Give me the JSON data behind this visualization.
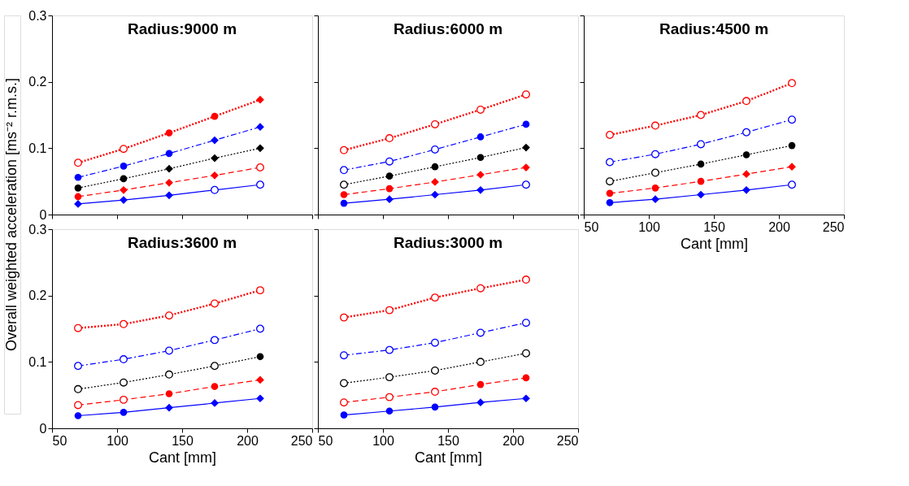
{
  "chart_data": [
    {
      "type": "line",
      "title": "Radius:9000 m",
      "ylabel": "Overall weighted acceleration [ms⁻² r.m.s.]",
      "x": [
        70,
        105,
        140,
        175,
        210
      ],
      "xlim": [
        50,
        250
      ],
      "ylim": [
        0,
        0.3
      ],
      "xticks": [
        50,
        100,
        150,
        200,
        250
      ],
      "yticks": [
        0,
        0.1,
        0.2,
        0.3
      ],
      "tick_labels": "y",
      "grid": false,
      "series": [
        {
          "color": "#ff0000",
          "line_style": "dotted",
          "marker": "none",
          "values": [
            0.078,
            0.099,
            0.123,
            0.148,
            0.173
          ]
        },
        {
          "color": "#0000ff",
          "line_style": "dashdot",
          "marker": "none",
          "values": [
            0.056,
            0.073,
            0.092,
            0.112,
            0.132
          ]
        },
        {
          "color": "#000000",
          "line_style": "dotted",
          "marker": "none",
          "values": [
            0.04,
            0.054,
            0.069,
            0.085,
            0.1
          ]
        },
        {
          "color": "#ff0000",
          "line_style": "dashed",
          "marker": "none",
          "values": [
            0.027,
            0.037,
            0.048,
            0.059,
            0.071
          ]
        },
        {
          "color": "#0000ff",
          "line_style": "solid",
          "marker": "none",
          "values": [
            0.016,
            0.022,
            0.029,
            0.037,
            0.045
          ]
        },
        {
          "type": "scatter",
          "color": "#ff0000",
          "marker": "circle_open",
          "x": [
            70,
            105
          ],
          "values": [
            0.078,
            0.099
          ]
        },
        {
          "type": "scatter",
          "color": "#ff0000",
          "marker": "circle",
          "x": [
            140,
            175
          ],
          "values": [
            0.123,
            0.148
          ]
        },
        {
          "type": "scatter",
          "color": "#ff0000",
          "marker": "diamond",
          "x": [
            210
          ],
          "values": [
            0.173
          ]
        },
        {
          "type": "scatter",
          "color": "#0000ff",
          "marker": "circle",
          "x": [
            70,
            105,
            140
          ],
          "values": [
            0.056,
            0.073,
            0.092
          ]
        },
        {
          "type": "scatter",
          "color": "#0000ff",
          "marker": "diamond",
          "x": [
            175,
            210
          ],
          "values": [
            0.112,
            0.132
          ]
        },
        {
          "type": "scatter",
          "color": "#000000",
          "marker": "circle",
          "x": [
            70,
            105
          ],
          "values": [
            0.04,
            0.054
          ]
        },
        {
          "type": "scatter",
          "color": "#000000",
          "marker": "diamond",
          "x": [
            140,
            175,
            210
          ],
          "values": [
            0.069,
            0.085,
            0.1
          ]
        },
        {
          "type": "scatter",
          "color": "#ff0000",
          "marker": "circle",
          "x": [
            70
          ],
          "values": [
            0.027
          ]
        },
        {
          "type": "scatter",
          "color": "#ff0000",
          "marker": "diamond",
          "x": [
            105,
            140,
            175
          ],
          "values": [
            0.037,
            0.048,
            0.059
          ]
        },
        {
          "type": "scatter",
          "color": "#ff0000",
          "marker": "circle_open",
          "x": [
            210
          ],
          "values": [
            0.071
          ]
        },
        {
          "type": "scatter",
          "color": "#0000ff",
          "marker": "diamond",
          "x": [
            70,
            105,
            140
          ],
          "values": [
            0.016,
            0.022,
            0.029
          ]
        },
        {
          "type": "scatter",
          "color": "#0000ff",
          "marker": "circle_open",
          "x": [
            175,
            210
          ],
          "values": [
            0.037,
            0.045
          ]
        }
      ]
    },
    {
      "type": "line",
      "title": "Radius:6000 m",
      "x": [
        70,
        105,
        140,
        175,
        210
      ],
      "xlim": [
        50,
        250
      ],
      "ylim": [
        0,
        0.3
      ],
      "xticks": [
        50,
        100,
        150,
        200,
        250
      ],
      "yticks": [
        0,
        0.1,
        0.2,
        0.3
      ],
      "tick_labels": false,
      "grid": false,
      "series": [
        {
          "color": "#ff0000",
          "line_style": "dotted",
          "marker": "none",
          "values": [
            0.097,
            0.115,
            0.136,
            0.158,
            0.181
          ]
        },
        {
          "color": "#0000ff",
          "line_style": "dashdot",
          "marker": "none",
          "values": [
            0.067,
            0.08,
            0.098,
            0.117,
            0.136
          ]
        },
        {
          "color": "#000000",
          "line_style": "dotted",
          "marker": "none",
          "values": [
            0.045,
            0.058,
            0.072,
            0.086,
            0.101
          ]
        },
        {
          "color": "#ff0000",
          "line_style": "dashed",
          "marker": "none",
          "values": [
            0.03,
            0.039,
            0.049,
            0.06,
            0.071
          ]
        },
        {
          "color": "#0000ff",
          "line_style": "solid",
          "marker": "none",
          "values": [
            0.017,
            0.023,
            0.03,
            0.037,
            0.045
          ]
        },
        {
          "type": "scatter",
          "color": "#ff0000",
          "marker": "circle_open",
          "x": [
            70,
            105,
            140,
            175,
            210
          ],
          "values": [
            0.097,
            0.115,
            0.136,
            0.158,
            0.181
          ]
        },
        {
          "type": "scatter",
          "color": "#0000ff",
          "marker": "circle_open",
          "x": [
            70,
            105,
            140
          ],
          "values": [
            0.067,
            0.08,
            0.098
          ]
        },
        {
          "type": "scatter",
          "color": "#0000ff",
          "marker": "circle",
          "x": [
            175,
            210
          ],
          "values": [
            0.117,
            0.136
          ]
        },
        {
          "type": "scatter",
          "color": "#000000",
          "marker": "circle_open",
          "x": [
            70
          ],
          "values": [
            0.045
          ]
        },
        {
          "type": "scatter",
          "color": "#000000",
          "marker": "circle",
          "x": [
            105,
            140,
            175
          ],
          "values": [
            0.058,
            0.072,
            0.086
          ]
        },
        {
          "type": "scatter",
          "color": "#000000",
          "marker": "diamond",
          "x": [
            210
          ],
          "values": [
            0.101
          ]
        },
        {
          "type": "scatter",
          "color": "#ff0000",
          "marker": "circle",
          "x": [
            70,
            105
          ],
          "values": [
            0.03,
            0.039
          ]
        },
        {
          "type": "scatter",
          "color": "#ff0000",
          "marker": "diamond",
          "x": [
            140,
            175,
            210
          ],
          "values": [
            0.049,
            0.06,
            0.071
          ]
        },
        {
          "type": "scatter",
          "color": "#0000ff",
          "marker": "circle",
          "x": [
            70
          ],
          "values": [
            0.017
          ]
        },
        {
          "type": "scatter",
          "color": "#0000ff",
          "marker": "diamond",
          "x": [
            105,
            140,
            175
          ],
          "values": [
            0.023,
            0.03,
            0.037
          ]
        },
        {
          "type": "scatter",
          "color": "#0000ff",
          "marker": "circle_open",
          "x": [
            210
          ],
          "values": [
            0.045
          ]
        }
      ]
    },
    {
      "type": "line",
      "title": "Radius:4500 m",
      "xlabel": "Cant [mm]",
      "x": [
        70,
        105,
        140,
        175,
        210
      ],
      "xlim": [
        50,
        250
      ],
      "ylim": [
        0,
        0.3
      ],
      "xticks": [
        50,
        100,
        150,
        200,
        250
      ],
      "yticks": [
        0,
        0.1,
        0.2,
        0.3
      ],
      "tick_labels": "x",
      "grid": false,
      "series": [
        {
          "color": "#ff0000",
          "line_style": "dotted",
          "marker": "none",
          "values": [
            0.12,
            0.134,
            0.15,
            0.171,
            0.198
          ]
        },
        {
          "color": "#0000ff",
          "line_style": "dashdot",
          "marker": "none",
          "values": [
            0.079,
            0.091,
            0.106,
            0.124,
            0.143
          ]
        },
        {
          "color": "#000000",
          "line_style": "dotted",
          "marker": "none",
          "values": [
            0.05,
            0.063,
            0.076,
            0.09,
            0.104
          ]
        },
        {
          "color": "#ff0000",
          "line_style": "dashed",
          "marker": "none",
          "values": [
            0.032,
            0.04,
            0.05,
            0.061,
            0.072
          ]
        },
        {
          "color": "#0000ff",
          "line_style": "solid",
          "marker": "none",
          "values": [
            0.018,
            0.023,
            0.03,
            0.037,
            0.045
          ]
        },
        {
          "type": "scatter",
          "color": "#ff0000",
          "marker": "circle_open",
          "x": [
            70,
            105,
            140,
            175,
            210
          ],
          "values": [
            0.12,
            0.134,
            0.15,
            0.171,
            0.198
          ]
        },
        {
          "type": "scatter",
          "color": "#0000ff",
          "marker": "circle_open",
          "x": [
            70,
            105,
            140,
            175,
            210
          ],
          "values": [
            0.079,
            0.091,
            0.106,
            0.124,
            0.143
          ]
        },
        {
          "type": "scatter",
          "color": "#000000",
          "marker": "circle_open",
          "x": [
            70,
            105
          ],
          "values": [
            0.05,
            0.063
          ]
        },
        {
          "type": "scatter",
          "color": "#000000",
          "marker": "circle",
          "x": [
            140,
            175,
            210
          ],
          "values": [
            0.076,
            0.09,
            0.104
          ]
        },
        {
          "type": "scatter",
          "color": "#ff0000",
          "marker": "circle",
          "x": [
            70,
            105,
            140
          ],
          "values": [
            0.032,
            0.04,
            0.05
          ]
        },
        {
          "type": "scatter",
          "color": "#ff0000",
          "marker": "diamond",
          "x": [
            175,
            210
          ],
          "values": [
            0.061,
            0.072
          ]
        },
        {
          "type": "scatter",
          "color": "#0000ff",
          "marker": "circle",
          "x": [
            70
          ],
          "values": [
            0.018
          ]
        },
        {
          "type": "scatter",
          "color": "#0000ff",
          "marker": "diamond",
          "x": [
            105,
            140,
            175
          ],
          "values": [
            0.023,
            0.03,
            0.037
          ]
        },
        {
          "type": "scatter",
          "color": "#0000ff",
          "marker": "circle_open",
          "x": [
            210
          ],
          "values": [
            0.045
          ]
        }
      ]
    },
    {
      "type": "line",
      "title": "Radius:3600 m",
      "xlabel": "Cant [mm]",
      "x": [
        70,
        105,
        140,
        175,
        210
      ],
      "xlim": [
        50,
        250
      ],
      "ylim": [
        0,
        0.3
      ],
      "xticks": [
        50,
        100,
        150,
        200,
        250
      ],
      "yticks": [
        0,
        0.1,
        0.2,
        0.3
      ],
      "grid": false,
      "series": [
        {
          "color": "#ff0000",
          "line_style": "dotted",
          "marker": "none",
          "values": [
            0.151,
            0.157,
            0.17,
            0.188,
            0.208
          ]
        },
        {
          "color": "#0000ff",
          "line_style": "dashdot",
          "marker": "none",
          "values": [
            0.094,
            0.104,
            0.117,
            0.133,
            0.15
          ]
        },
        {
          "color": "#000000",
          "line_style": "dotted",
          "marker": "none",
          "values": [
            0.059,
            0.069,
            0.081,
            0.094,
            0.108
          ]
        },
        {
          "color": "#ff0000",
          "line_style": "dashed",
          "marker": "none",
          "values": [
            0.035,
            0.043,
            0.052,
            0.063,
            0.073
          ]
        },
        {
          "color": "#0000ff",
          "line_style": "solid",
          "marker": "none",
          "values": [
            0.019,
            0.024,
            0.031,
            0.038,
            0.045
          ]
        },
        {
          "type": "scatter",
          "color": "#ff0000",
          "marker": "circle_open",
          "x": [
            70,
            105,
            140,
            175,
            210
          ],
          "values": [
            0.151,
            0.157,
            0.17,
            0.188,
            0.208
          ]
        },
        {
          "type": "scatter",
          "color": "#0000ff",
          "marker": "circle_open",
          "x": [
            70,
            105,
            140,
            175,
            210
          ],
          "values": [
            0.094,
            0.104,
            0.117,
            0.133,
            0.15
          ]
        },
        {
          "type": "scatter",
          "color": "#000000",
          "marker": "circle_open",
          "x": [
            70,
            105,
            140,
            175
          ],
          "values": [
            0.059,
            0.069,
            0.081,
            0.094
          ]
        },
        {
          "type": "scatter",
          "color": "#000000",
          "marker": "circle",
          "x": [
            210
          ],
          "values": [
            0.108
          ]
        },
        {
          "type": "scatter",
          "color": "#ff0000",
          "marker": "circle_open",
          "x": [
            70,
            105
          ],
          "values": [
            0.035,
            0.043
          ]
        },
        {
          "type": "scatter",
          "color": "#ff0000",
          "marker": "circle",
          "x": [
            140,
            175
          ],
          "values": [
            0.052,
            0.063
          ]
        },
        {
          "type": "scatter",
          "color": "#ff0000",
          "marker": "diamond",
          "x": [
            210
          ],
          "values": [
            0.073
          ]
        },
        {
          "type": "scatter",
          "color": "#0000ff",
          "marker": "circle",
          "x": [
            70,
            105
          ],
          "values": [
            0.019,
            0.024
          ]
        },
        {
          "type": "scatter",
          "color": "#0000ff",
          "marker": "diamond",
          "x": [
            140,
            175,
            210
          ],
          "values": [
            0.031,
            0.038,
            0.045
          ]
        }
      ]
    },
    {
      "type": "line",
      "title": "Radius:3000 m",
      "xlabel": "Cant [mm]",
      "x": [
        70,
        105,
        140,
        175,
        210
      ],
      "xlim": [
        50,
        250
      ],
      "ylim": [
        0,
        0.3
      ],
      "xticks": [
        50,
        100,
        150,
        200,
        250
      ],
      "yticks": [
        0,
        0.1,
        0.2,
        0.3
      ],
      "tick_labels": "x",
      "grid": false,
      "series": [
        {
          "color": "#ff0000",
          "line_style": "dotted",
          "marker": "none",
          "values": [
            0.167,
            0.178,
            0.197,
            0.211,
            0.224
          ]
        },
        {
          "color": "#0000ff",
          "line_style": "dashdot",
          "marker": "none",
          "values": [
            0.11,
            0.118,
            0.129,
            0.144,
            0.159
          ]
        },
        {
          "color": "#000000",
          "line_style": "dotted",
          "marker": "none",
          "values": [
            0.068,
            0.077,
            0.087,
            0.1,
            0.113
          ]
        },
        {
          "color": "#ff0000",
          "line_style": "dashed",
          "marker": "none",
          "values": [
            0.039,
            0.047,
            0.055,
            0.066,
            0.076
          ]
        },
        {
          "color": "#0000ff",
          "line_style": "solid",
          "marker": "none",
          "values": [
            0.02,
            0.026,
            0.032,
            0.039,
            0.045
          ]
        },
        {
          "type": "scatter",
          "color": "#ff0000",
          "marker": "circle_open",
          "x": [
            70,
            105,
            140,
            175,
            210
          ],
          "values": [
            0.167,
            0.178,
            0.197,
            0.211,
            0.224
          ]
        },
        {
          "type": "scatter",
          "color": "#0000ff",
          "marker": "circle_open",
          "x": [
            70,
            105,
            140,
            175,
            210
          ],
          "values": [
            0.11,
            0.118,
            0.129,
            0.144,
            0.159
          ]
        },
        {
          "type": "scatter",
          "color": "#000000",
          "marker": "circle_open",
          "x": [
            70,
            105,
            140,
            175,
            210
          ],
          "values": [
            0.068,
            0.077,
            0.087,
            0.1,
            0.113
          ]
        },
        {
          "type": "scatter",
          "color": "#ff0000",
          "marker": "circle_open",
          "x": [
            70,
            105,
            140
          ],
          "values": [
            0.039,
            0.047,
            0.055
          ]
        },
        {
          "type": "scatter",
          "color": "#ff0000",
          "marker": "circle",
          "x": [
            175,
            210
          ],
          "values": [
            0.066,
            0.076
          ]
        },
        {
          "type": "scatter",
          "color": "#0000ff",
          "marker": "circle",
          "x": [
            70,
            105,
            140
          ],
          "values": [
            0.02,
            0.026,
            0.032
          ]
        },
        {
          "type": "scatter",
          "color": "#0000ff",
          "marker": "diamond",
          "x": [
            175,
            210
          ],
          "values": [
            0.039,
            0.045
          ]
        }
      ]
    }
  ]
}
